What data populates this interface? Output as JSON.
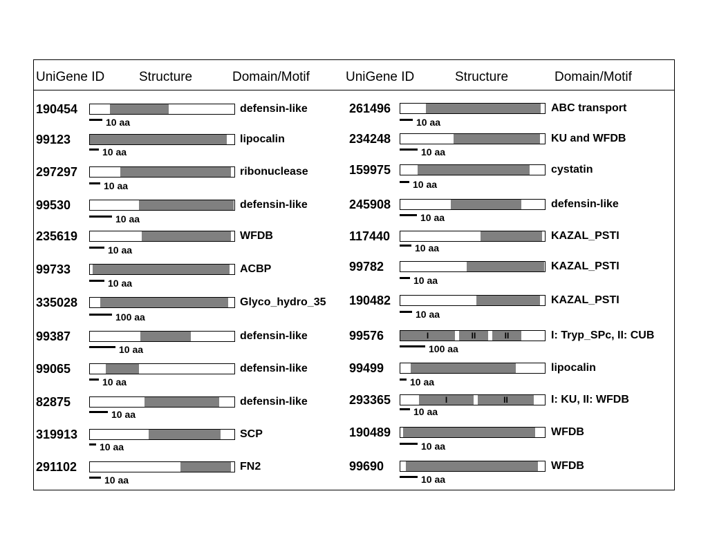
{
  "headers": {
    "left": {
      "unigene": "UniGene ID",
      "structure": "Structure",
      "domain": "Domain/Motif"
    },
    "right": {
      "unigene": "UniGene ID",
      "structure": "Structure",
      "domain": "Domain/Motif"
    }
  },
  "colors": {
    "domain_fill": "#808080",
    "bar_outline": "#000000",
    "background": "#ffffff"
  },
  "left_rows": [
    {
      "id": "190454",
      "domain": "defensin-like",
      "scale_label": "10 aa",
      "segments": [
        {
          "start": 0.14,
          "end": 0.55
        }
      ]
    },
    {
      "id": "99123",
      "domain": "lipocalin",
      "scale_label": "10 aa",
      "segments": [
        {
          "start": 0.0,
          "end": 0.95
        }
      ]
    },
    {
      "id": "297297",
      "domain": "ribonuclease",
      "scale_label": "10 aa",
      "segments": [
        {
          "start": 0.21,
          "end": 0.98
        }
      ]
    },
    {
      "id": "99530",
      "domain": "defensin-like",
      "scale_label": "10 aa",
      "segments": [
        {
          "start": 0.34,
          "end": 1.0
        }
      ]
    },
    {
      "id": "235619",
      "domain": "WFDB",
      "scale_label": "10 aa",
      "segments": [
        {
          "start": 0.36,
          "end": 0.98
        }
      ]
    },
    {
      "id": "99733",
      "domain": "ACBP",
      "scale_label": "10 aa",
      "segments": [
        {
          "start": 0.02,
          "end": 0.97
        }
      ]
    },
    {
      "id": "335028",
      "domain": "Glyco_hydro_35",
      "scale_label": "100 aa",
      "segments": [
        {
          "start": 0.07,
          "end": 0.96
        }
      ]
    },
    {
      "id": "99387",
      "domain": "defensin-like",
      "scale_label": "10 aa",
      "segments": [
        {
          "start": 0.35,
          "end": 0.7
        }
      ]
    },
    {
      "id": "99065",
      "domain": "defensin-like",
      "scale_label": "10 aa",
      "segments": [
        {
          "start": 0.11,
          "end": 0.34
        }
      ]
    },
    {
      "id": "82875",
      "domain": "defensin-like",
      "scale_label": "10 aa",
      "segments": [
        {
          "start": 0.38,
          "end": 0.9
        }
      ]
    },
    {
      "id": "319913",
      "domain": "SCP",
      "scale_label": "10 aa",
      "segments": [
        {
          "start": 0.41,
          "end": 0.91
        }
      ]
    },
    {
      "id": "291102",
      "domain": "FN2",
      "scale_label": "10 aa",
      "segments": [
        {
          "start": 0.63,
          "end": 0.98
        }
      ]
    }
  ],
  "right_rows": [
    {
      "id": "261496",
      "domain": "ABC transport",
      "scale_label": "10 aa",
      "segments": [
        {
          "start": 0.18,
          "end": 0.98
        }
      ]
    },
    {
      "id": "234248",
      "domain": "KU and WFDB",
      "scale_label": "10 aa",
      "segments": [
        {
          "start": 0.37,
          "end": 0.97
        }
      ]
    },
    {
      "id": "159975",
      "domain": "cystatin",
      "scale_label": "10 aa",
      "segments": [
        {
          "start": 0.12,
          "end": 0.9
        }
      ]
    },
    {
      "id": "245908",
      "domain": "defensin-like",
      "scale_label": "10 aa",
      "segments": [
        {
          "start": 0.35,
          "end": 0.84
        }
      ]
    },
    {
      "id": "117440",
      "domain": "KAZAL_PSTI",
      "scale_label": "10 aa",
      "segments": [
        {
          "start": 0.56,
          "end": 0.99
        }
      ]
    },
    {
      "id": "99782",
      "domain": "KAZAL_PSTI",
      "scale_label": "10 aa",
      "segments": [
        {
          "start": 0.46,
          "end": 1.0
        }
      ]
    },
    {
      "id": "190482",
      "domain": "KAZAL_PSTI",
      "scale_label": "10 aa",
      "segments": [
        {
          "start": 0.53,
          "end": 0.97
        }
      ]
    },
    {
      "id": "99576",
      "domain": "I: Tryp_SPc,  II: CUB",
      "scale_label": "100 aa",
      "segments": [
        {
          "start": 0.0,
          "end": 0.38,
          "label": "I"
        },
        {
          "start": 0.41,
          "end": 0.61,
          "label": "II"
        },
        {
          "start": 0.64,
          "end": 0.84,
          "label": "II"
        }
      ]
    },
    {
      "id": "99499",
      "domain": "lipocalin",
      "scale_label": "10 aa",
      "segments": [
        {
          "start": 0.07,
          "end": 0.8
        }
      ]
    },
    {
      "id": "293365",
      "domain": "I: KU,  II: WFDB",
      "scale_label": "10 aa",
      "segments": [
        {
          "start": 0.13,
          "end": 0.51,
          "label": "I"
        },
        {
          "start": 0.54,
          "end": 0.93,
          "label": "II"
        }
      ]
    },
    {
      "id": "190489",
      "domain": "WFDB",
      "scale_label": "10 aa",
      "segments": [
        {
          "start": 0.02,
          "end": 0.94
        }
      ]
    },
    {
      "id": "99690",
      "domain": "WFDB",
      "scale_label": "10 aa",
      "segments": [
        {
          "start": 0.04,
          "end": 0.96
        }
      ]
    }
  ]
}
